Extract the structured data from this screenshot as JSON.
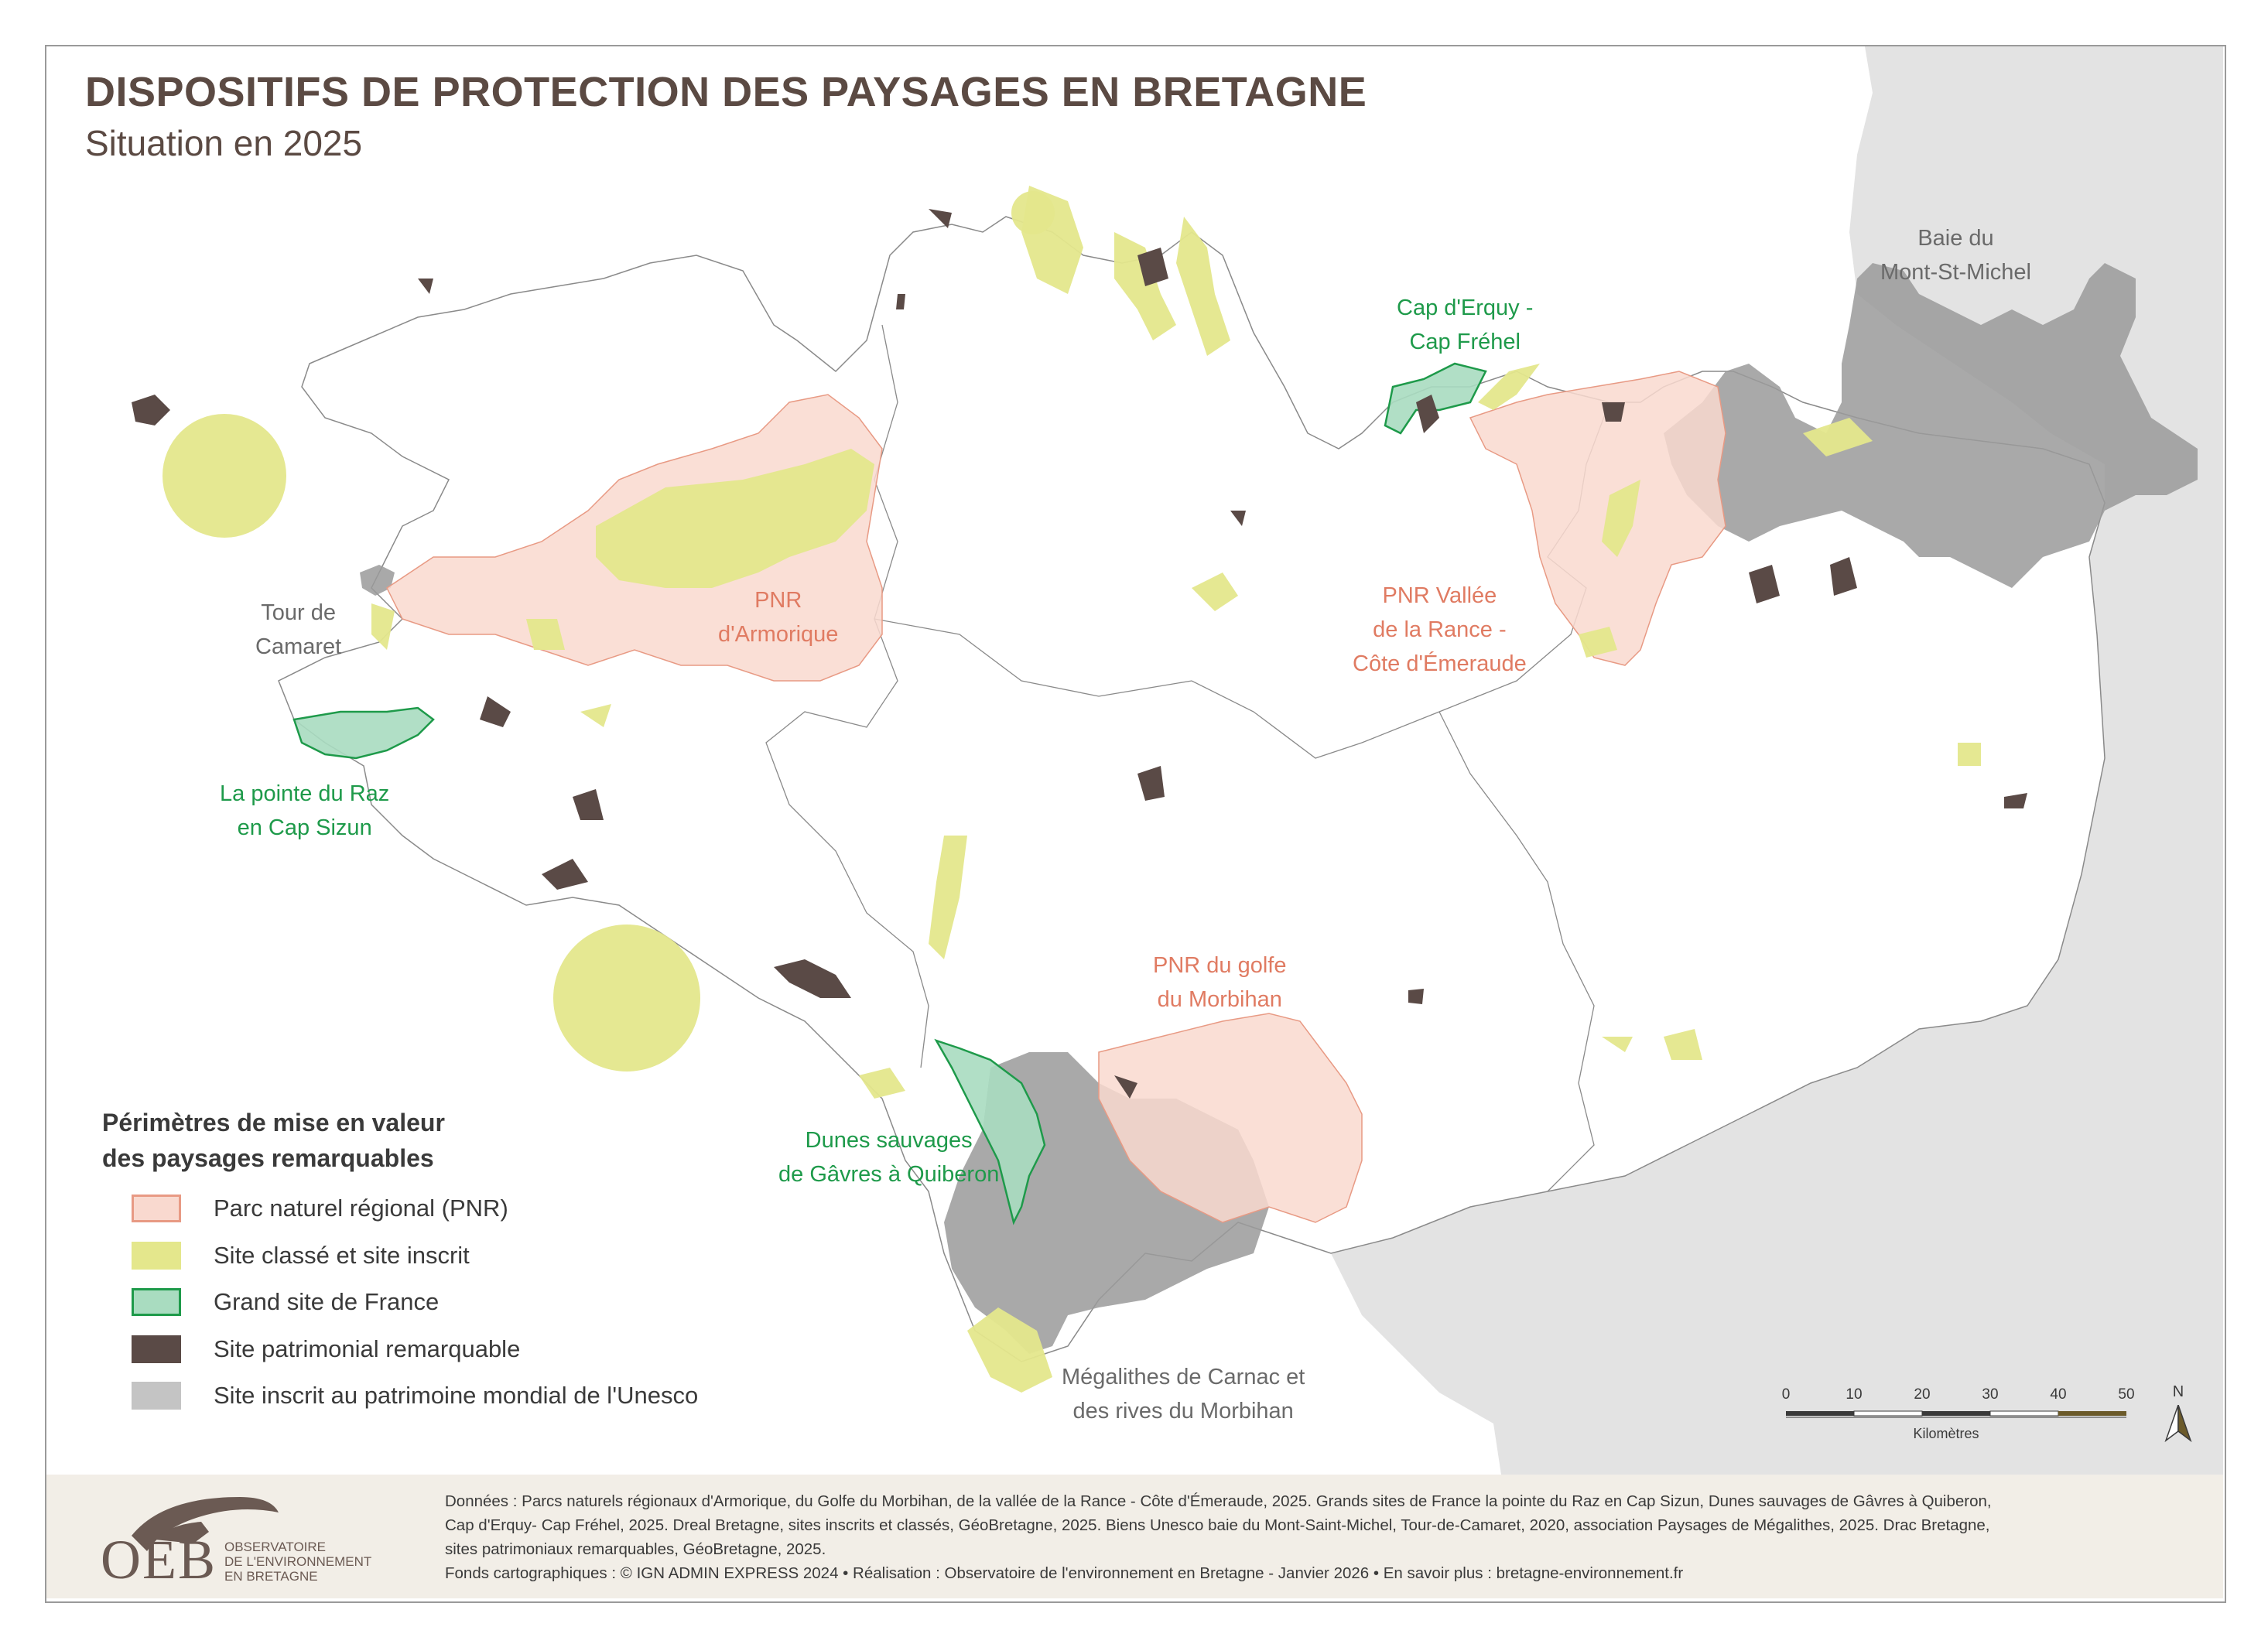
{
  "title": "DISPOSITIFS DE PROTECTION DES PAYSAGES EN BRETAGNE",
  "subtitle": "Situation en 2025",
  "map_labels": {
    "baie": [
      "Baie du",
      "Mont-St-Michel"
    ],
    "erquy": [
      "Cap d'Erquy -",
      "Cap Fréhel"
    ],
    "camaret": [
      "Tour de",
      "Camaret"
    ],
    "pnr_armorique": [
      "PNR",
      "d'Armorique"
    ],
    "pnr_rance": [
      "PNR Vallée",
      "de la Rance -",
      "Côte d'Émeraude"
    ],
    "raz": [
      "La pointe du Raz",
      "en Cap Sizun"
    ],
    "pnr_morbihan": [
      "PNR du golfe",
      "du Morbihan"
    ],
    "dunes": [
      "Dunes sauvages",
      "de Gâvres à Quiberon"
    ],
    "megalithes": [
      "Mégalithes de Carnac et",
      "des rives du Morbihan"
    ]
  },
  "legend": {
    "title_lines": [
      "Périmètres de mise en valeur",
      "des paysages remarquables"
    ],
    "items": [
      {
        "label": "Parc naturel régional (PNR)",
        "fill": "#f9d9cf",
        "stroke": "#e89a84"
      },
      {
        "label": "Site classé et site inscrit",
        "fill": "#e4e78c",
        "stroke": "#e4e78c"
      },
      {
        "label": "Grand site de France",
        "fill": "#a9dcc0",
        "stroke": "#1e9a4a"
      },
      {
        "label": "Site patrimonial remarquable",
        "fill": "#5a4a46",
        "stroke": "#5a4a46"
      },
      {
        "label": "Site inscrit au patrimoine mondial de l'Unesco",
        "fill": "#c4c4c4",
        "stroke": "#c4c4c4"
      }
    ]
  },
  "scale": {
    "ticks": [
      "0",
      "10",
      "20",
      "30",
      "40",
      "50"
    ],
    "unit": "Kilomètres"
  },
  "north": "N",
  "credits": [
    "Données : Parcs naturels régionaux d'Armorique, du Golfe du Morbihan, de la vallée de la Rance - Côte d'Émeraude, 2025. Grands sites de France la pointe du Raz en Cap Sizun, Dunes sauvages de Gâvres à Quiberon,",
    "Cap d'Erquy- Cap Fréhel, 2025. Dreal Bretagne, sites inscrits et classés, GéoBretagne, 2025. Biens Unesco baie du Mont-Saint-Michel, Tour-de-Camaret, 2020, association Paysages de Mégalithes, 2025. Drac Bretagne,",
    "sites patrimoniaux remarquables, GéoBretagne, 2025.",
    "Fonds cartographiques : © IGN ADMIN EXPRESS 2024 • Réalisation : Observatoire de l'environnement en Bretagne - Janvier 2026 • En savoir plus : bretagne-environnement.fr"
  ],
  "logo": {
    "letters": "OEB",
    "lines": [
      "OBSERVATOIRE",
      "DE L'ENVIRONNEMENT",
      "EN BRETAGNE"
    ]
  },
  "colors": {
    "pnr_fill": "#f9d9cf",
    "pnr_stroke": "#e89a84",
    "site_classe": "#e4e78c",
    "gsf_fill": "#a9dcc0",
    "gsf_stroke": "#1e9a4a",
    "spr": "#5a4a46",
    "unesco": "#9a9a9a",
    "neighbour": "#e3e3e3",
    "boundary": "#8a8a8a"
  }
}
